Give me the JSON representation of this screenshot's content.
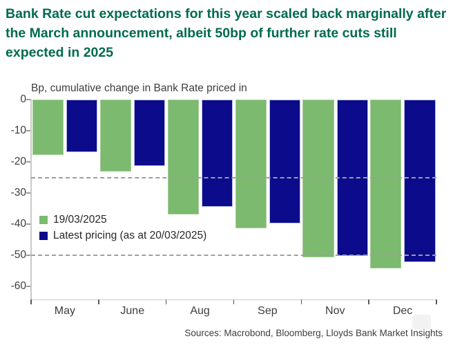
{
  "header": {
    "title": "Bank Rate cut expectations for this year scaled back marginally after the March announcement, albeit 50bp of further rate cuts still expected in 2025",
    "brand_color": "#006b4e"
  },
  "chart_data": {
    "type": "bar",
    "title": "Bp, cumulative change in Bank Rate priced in",
    "categories": [
      "May",
      "June",
      "Aug",
      "Sep",
      "Nov",
      "Dec"
    ],
    "series": [
      {
        "name": "19/03/2025",
        "color": "#7cba6f",
        "values": [
          -17.8,
          -23.2,
          -36.9,
          -41.3,
          -50.6,
          -54.3
        ]
      },
      {
        "name": "Latest pricing (as at 20/03/2025)",
        "color": "#0b0b8b",
        "values": [
          -16.9,
          -21.4,
          -34.4,
          -39.7,
          -50.2,
          -52.2
        ]
      }
    ],
    "ylabel": "",
    "xlabel": "",
    "ylim": [
      -60,
      0
    ],
    "yticks": [
      0,
      -10,
      -20,
      -30,
      -40,
      -50,
      -60
    ],
    "reference_lines": [
      -25,
      -50
    ],
    "grid": false,
    "legend_position": "inside-left"
  },
  "footer": {
    "source": "Sources: Macrobond, Bloomberg, Lloyds Bank Market Insights"
  }
}
